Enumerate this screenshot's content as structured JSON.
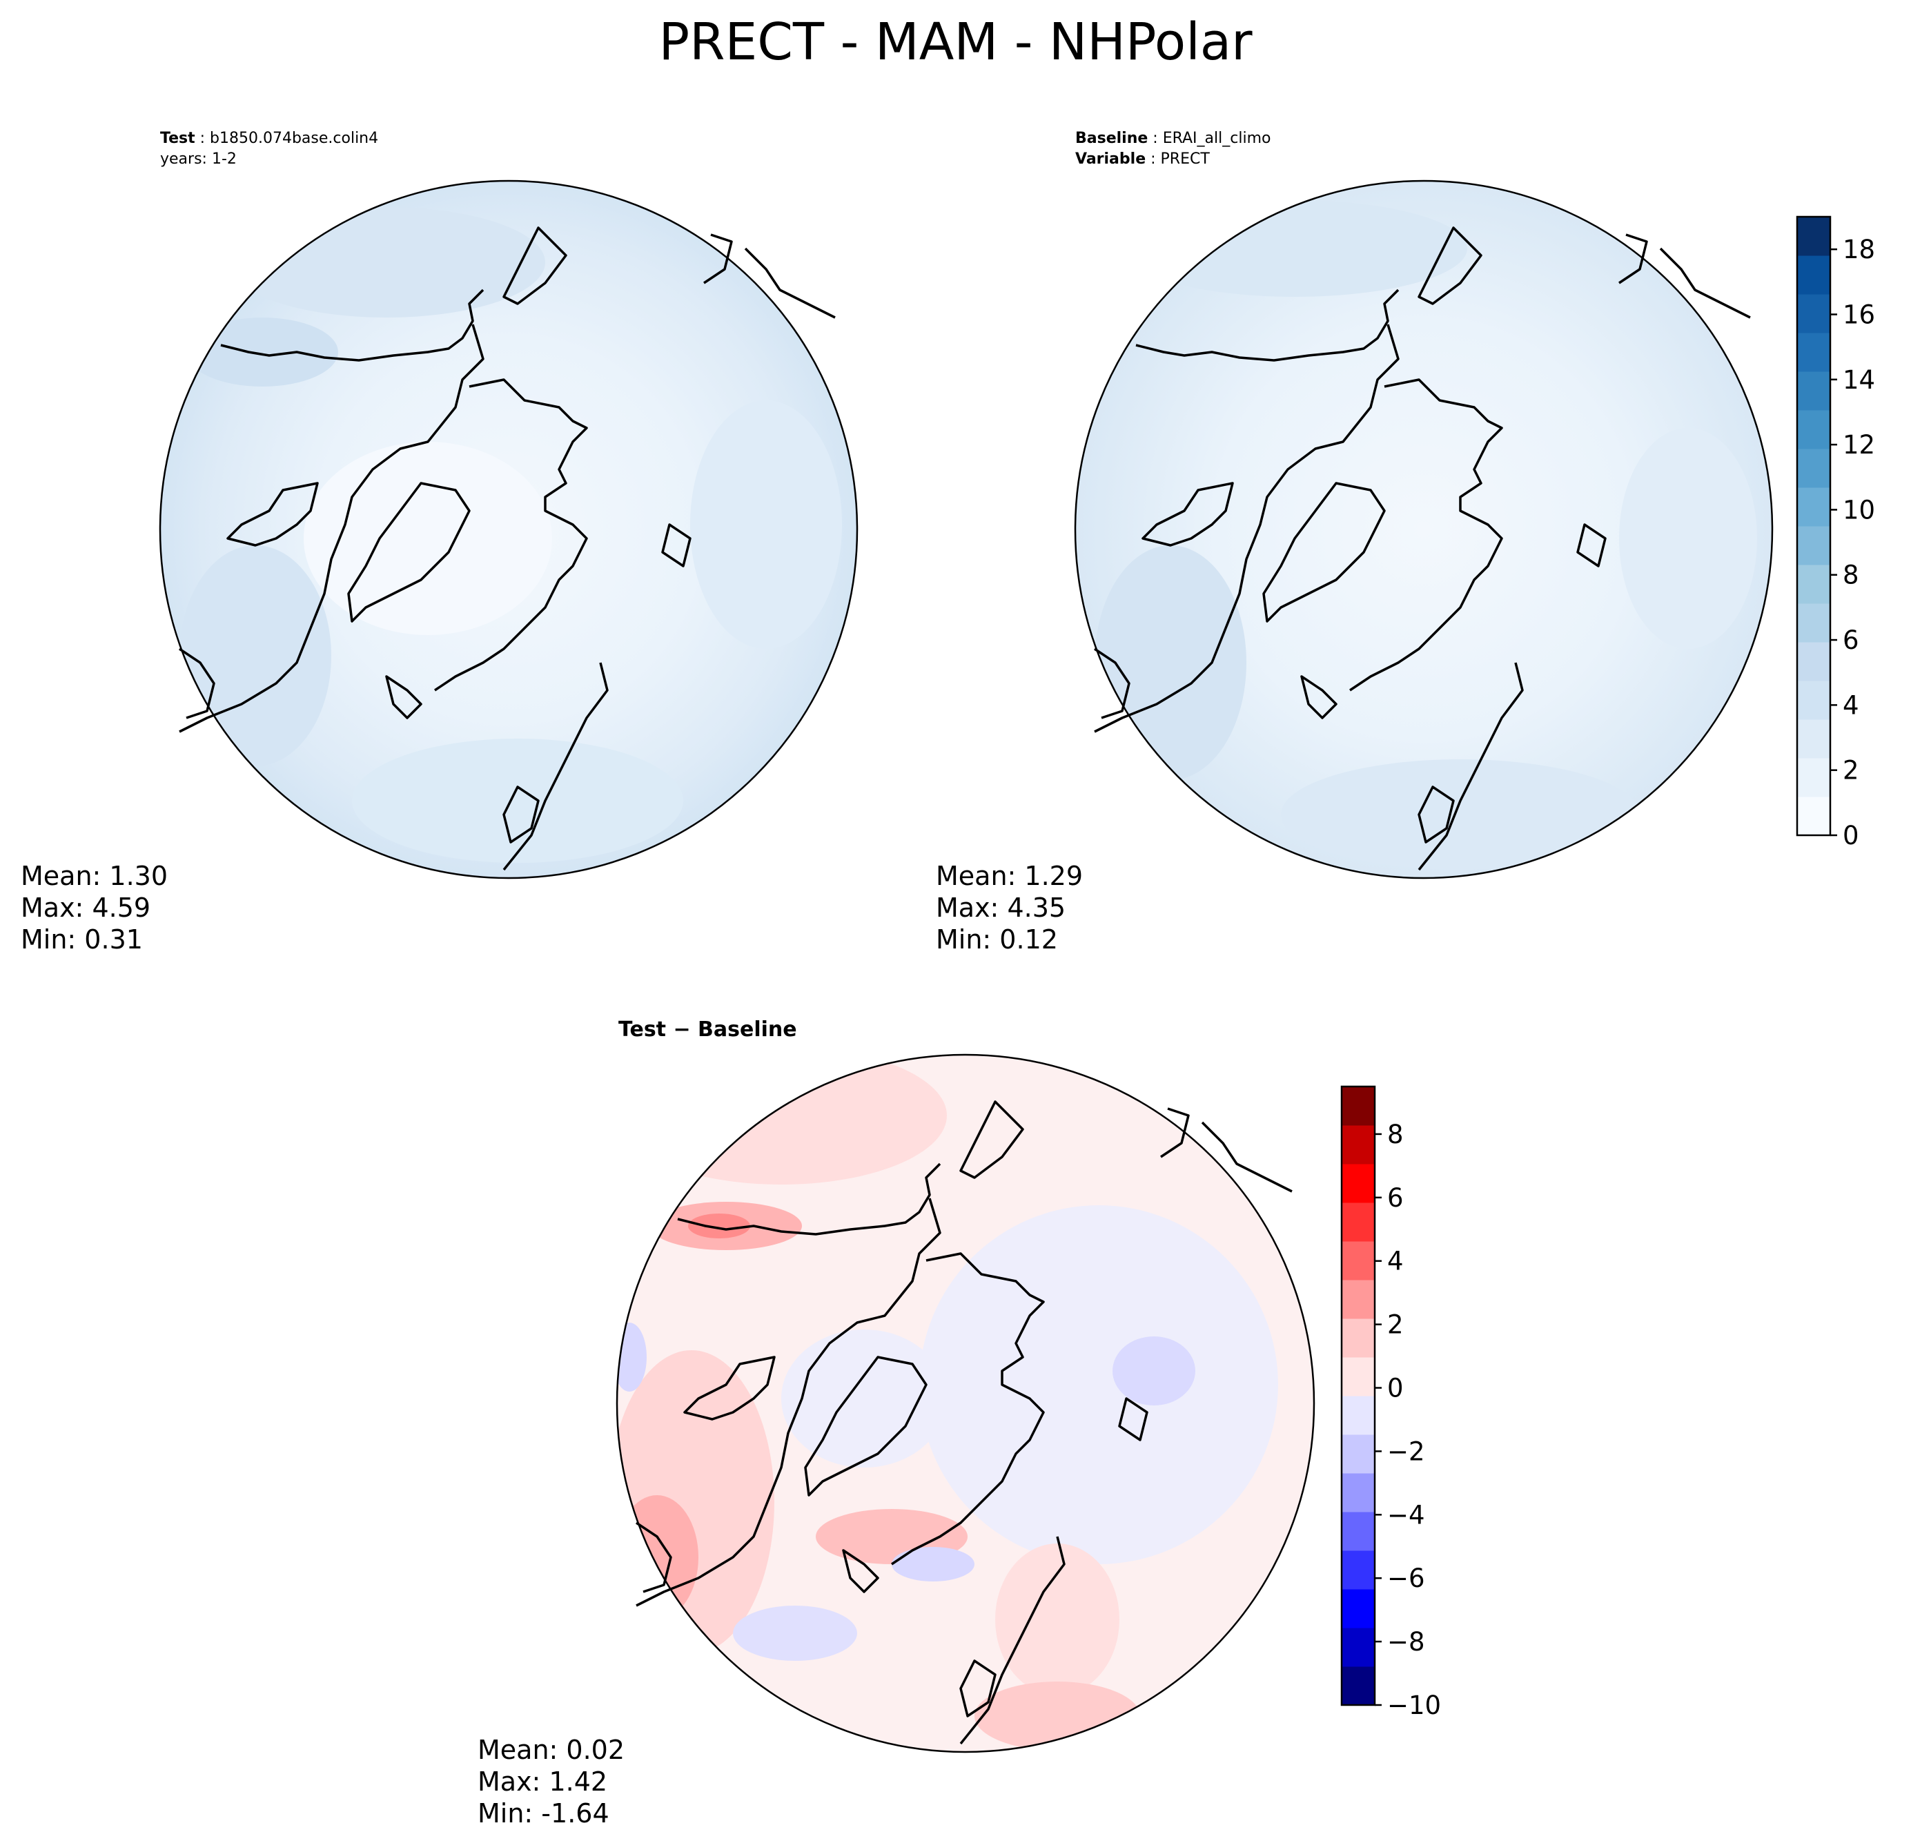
{
  "figure_title": "PRECT - MAM - NHPolar",
  "colors": {
    "blues": [
      "#f7fbff",
      "#eaf3fb",
      "#deebf7",
      "#d0e3f3",
      "#c6dbef",
      "#b0d2e8",
      "#9ecae1",
      "#82badb",
      "#6baed6",
      "#539ecd",
      "#4292c6",
      "#3182bd",
      "#2171b5",
      "#1561a9",
      "#08519c",
      "#08306b"
    ],
    "diverging": [
      "#000080",
      "#0000c8",
      "#0000ff",
      "#3333ff",
      "#6666ff",
      "#9999ff",
      "#c8c8ff",
      "#e6e6ff",
      "#ffe6e6",
      "#ffc8c8",
      "#ff9999",
      "#ff6666",
      "#ff3333",
      "#ff0000",
      "#c80000",
      "#800000"
    ]
  },
  "panels": {
    "test": {
      "label_bold": "Test",
      "label_value": "b1850.074base.colin4",
      "years": "years: 1-2",
      "stats": {
        "mean": "Mean:  1.30",
        "max": "Max:  4.59",
        "min": "Min:  0.31"
      }
    },
    "baseline": {
      "label_bold": "Baseline",
      "label_value": "ERAI_all_climo",
      "var_bold": "Variable",
      "var_value": "PRECT",
      "stats": {
        "mean": "Mean:  1.29",
        "max": "Max:  4.35",
        "min": "Min:  0.12"
      }
    },
    "diff": {
      "title": "Test − Baseline",
      "stats": {
        "mean": "Mean:  0.02",
        "max": "Max:  1.42",
        "min": "Min: -1.64"
      }
    }
  },
  "chart_data": [
    {
      "type": "heatmap",
      "projection": "north-polar-stereographic",
      "panel": "test",
      "stats": {
        "mean": 1.3,
        "max": 4.59,
        "min": 0.31
      },
      "colorbar_range": [
        0,
        19
      ]
    },
    {
      "type": "heatmap",
      "projection": "north-polar-stereographic",
      "panel": "baseline",
      "stats": {
        "mean": 1.29,
        "max": 4.35,
        "min": 0.12
      },
      "colorbar_range": [
        0,
        19
      ],
      "colorbar_ticks": [
        "0",
        "2",
        "4",
        "6",
        "8",
        "10",
        "12",
        "14",
        "16",
        "18"
      ]
    },
    {
      "type": "heatmap",
      "projection": "north-polar-stereographic",
      "panel": "diff",
      "stats": {
        "mean": 0.02,
        "max": 1.42,
        "min": -1.64
      },
      "colorbar_range": [
        -10,
        9.5
      ],
      "colorbar_ticks": [
        "−10",
        "−8",
        "−6",
        "−4",
        "−2",
        "0",
        "2",
        "4",
        "6",
        "8"
      ]
    }
  ]
}
